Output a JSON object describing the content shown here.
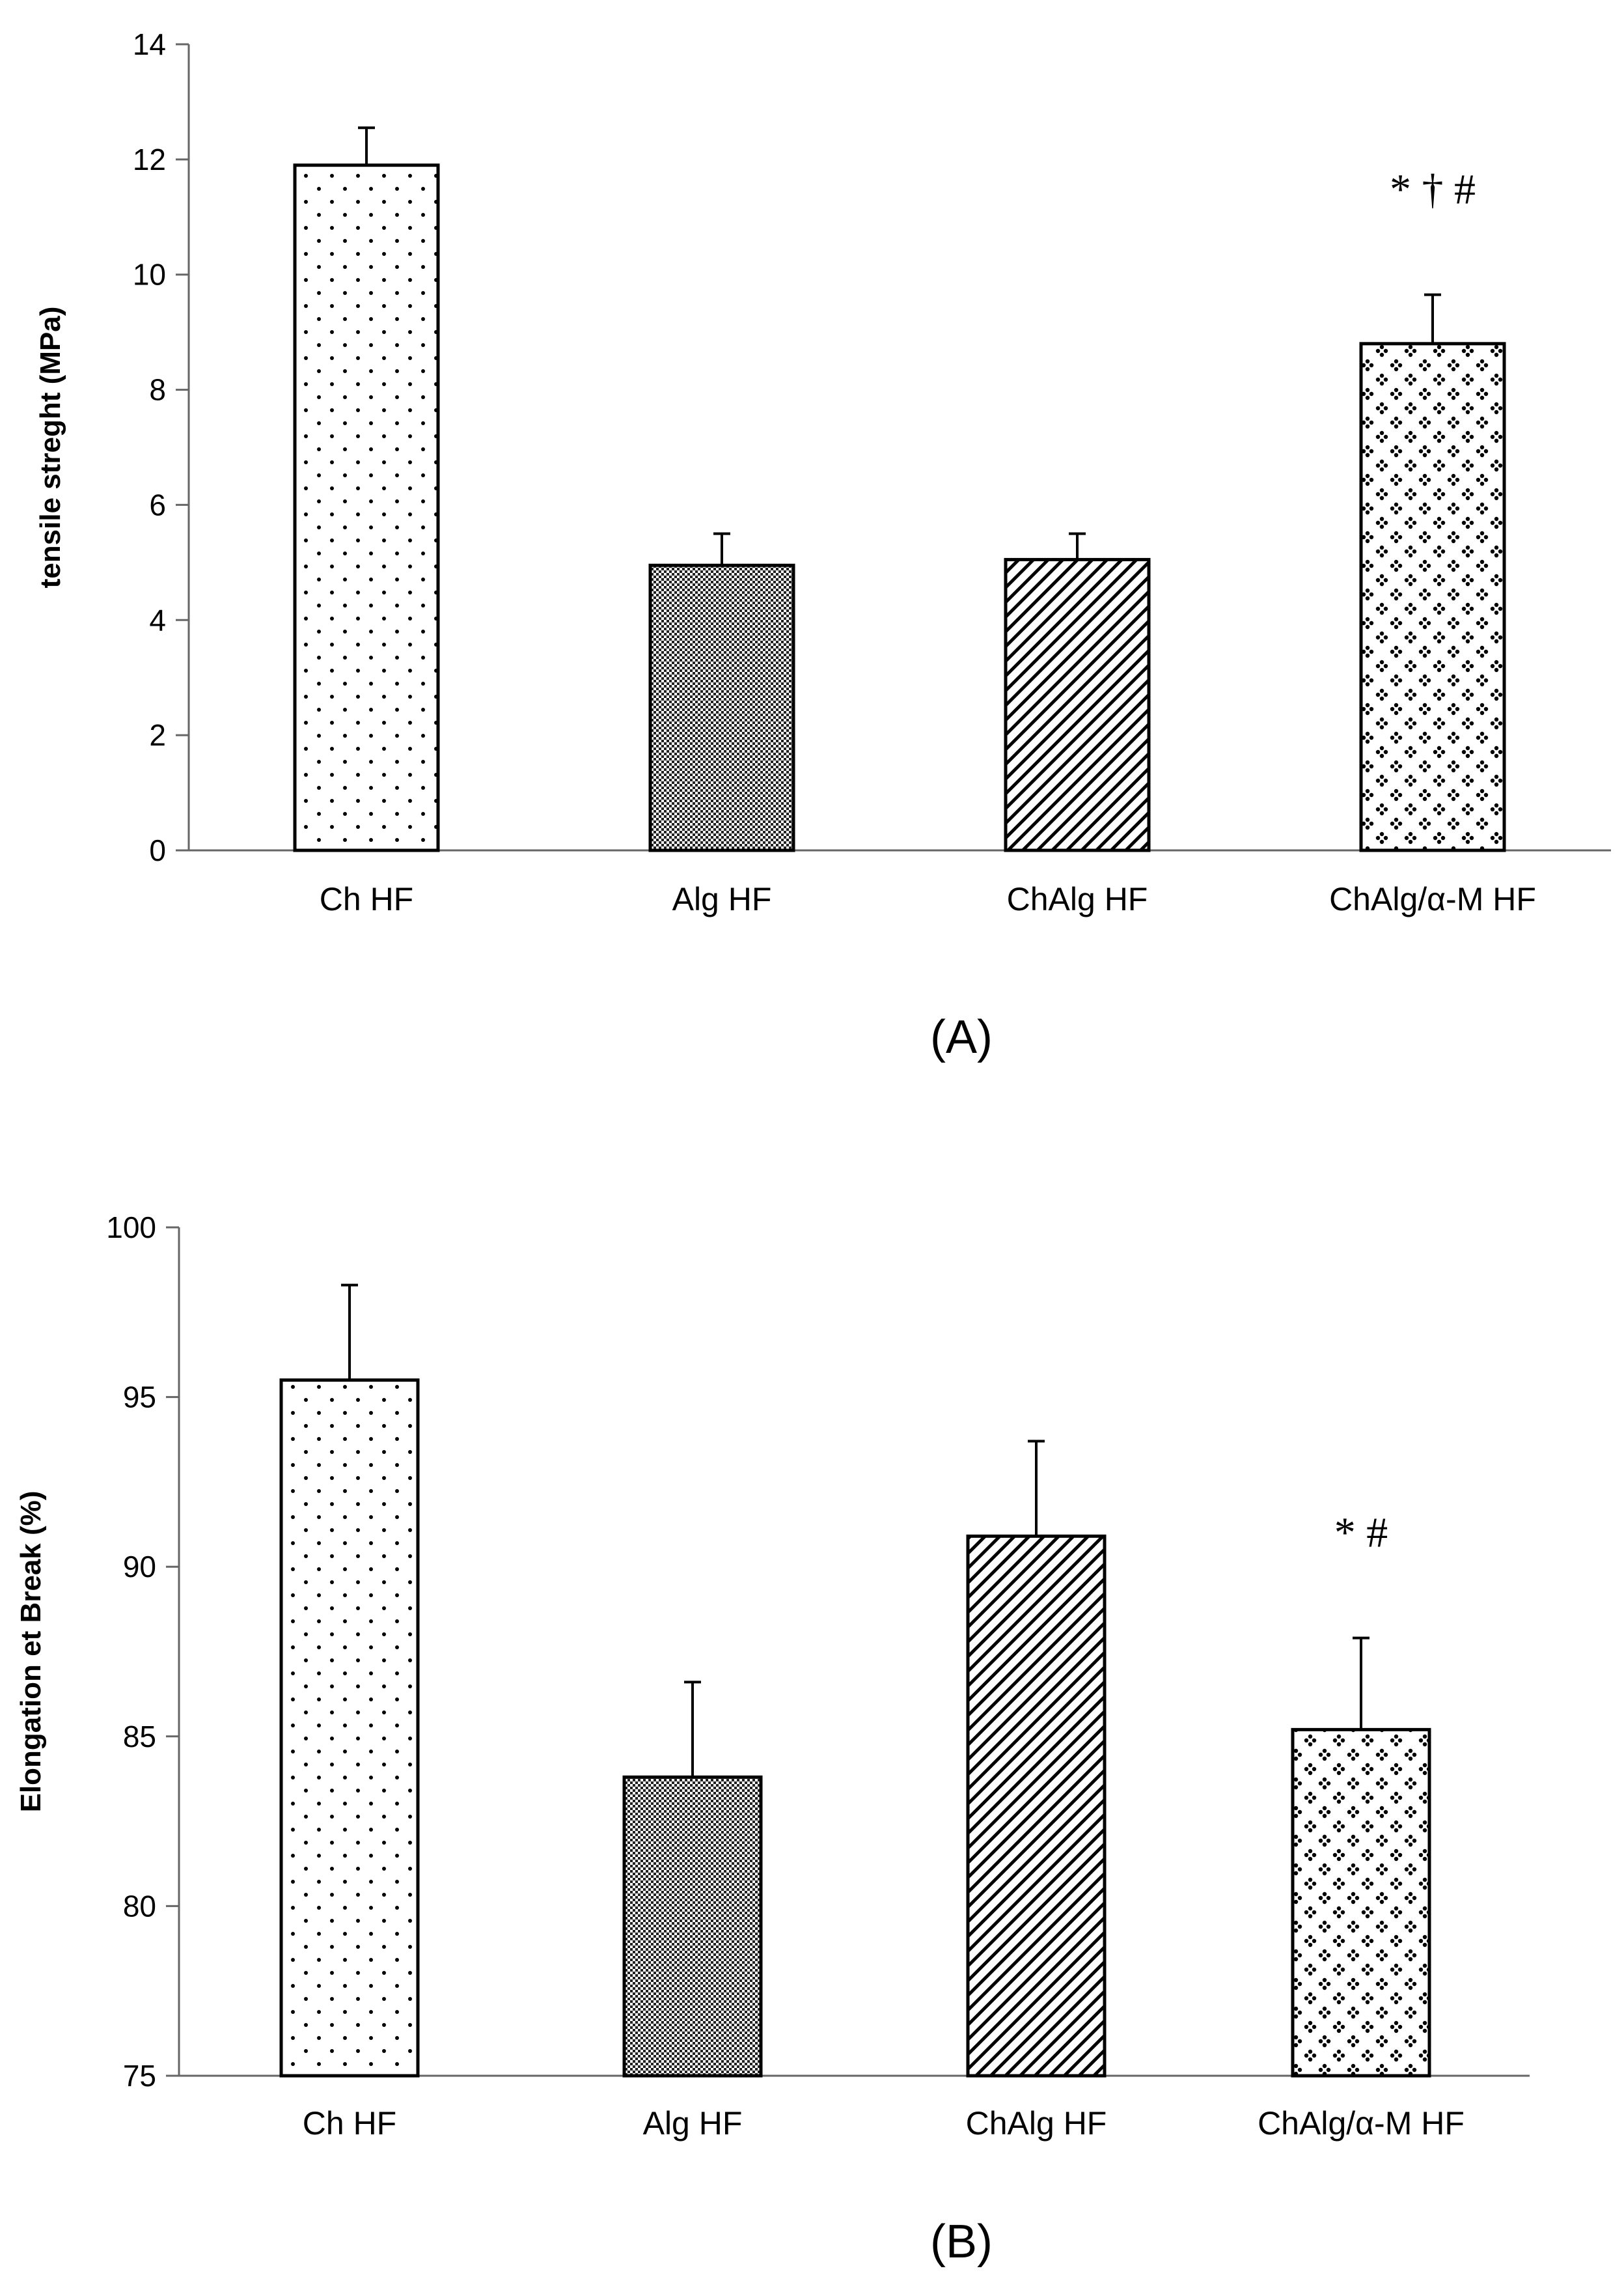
{
  "chart_data": [
    {
      "type": "bar",
      "panel_label": "(A)",
      "categories": [
        "Ch HF",
        "Alg HF",
        "ChAlg HF",
        "ChAlg/α-M HF"
      ],
      "values": [
        11.9,
        4.95,
        5.05,
        8.8
      ],
      "errors": [
        0.65,
        0.55,
        0.45,
        0.85
      ],
      "annotations": [
        "",
        "",
        "",
        "* † #"
      ],
      "patterns": [
        "dots",
        "checker",
        "diagonal",
        "diamond-dots"
      ],
      "ylabel": "tensile streght (MPa)",
      "xlabel": "",
      "ylim": [
        0,
        14
      ],
      "yticks": [
        0,
        2,
        4,
        6,
        8,
        10,
        12,
        14
      ],
      "grid": false
    },
    {
      "type": "bar",
      "panel_label": "(B)",
      "categories": [
        "Ch HF",
        "Alg HF",
        "ChAlg HF",
        "ChAlg/α-M HF"
      ],
      "values": [
        95.5,
        83.8,
        90.9,
        85.2
      ],
      "errors": [
        2.8,
        2.8,
        2.8,
        2.7
      ],
      "annotations": [
        "",
        "",
        "",
        "* #"
      ],
      "patterns": [
        "dots",
        "checker",
        "diagonal",
        "diamond-dots"
      ],
      "ylabel": "Elongation et Break (%)",
      "xlabel": "",
      "ylim": [
        75,
        100
      ],
      "yticks": [
        75,
        80,
        85,
        90,
        95,
        100
      ],
      "grid": false
    }
  ]
}
